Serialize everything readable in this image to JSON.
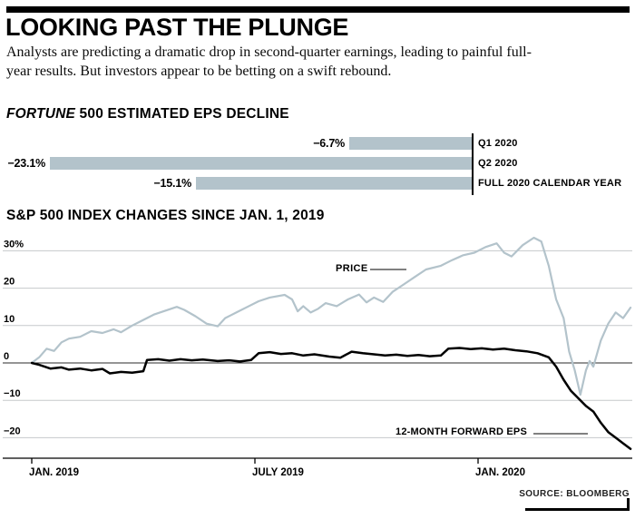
{
  "page": {
    "title": "LOOKING PAST THE PLUNGE",
    "subtitle": "Analysts are predicting a dramatic drop in second-quarter earnings, leading to painful full-year results. But investors appear to be betting on a swift rebound.",
    "source": "SOURCE: BLOOMBERG"
  },
  "colors": {
    "accent_bar": "#b3c3cb",
    "price_line": "#b3c3cb",
    "eps_line": "#000000",
    "grid": "#c6c9cb",
    "zero_line": "#2b2b2b"
  },
  "chart_data": [
    {
      "type": "bar",
      "orientation": "horizontal",
      "title": "FORTUNE 500 ESTIMATED EPS DECLINE",
      "title_parts": {
        "italic": "FORTUNE",
        "rest": " 500 ESTIMATED EPS DECLINE"
      },
      "categories": [
        "Q1 2020",
        "Q2 2020",
        "FULL 2020 CALENDAR YEAR"
      ],
      "values": [
        -6.7,
        -23.1,
        -15.1
      ],
      "value_labels": [
        "−6.7%",
        "−23.1%",
        "−15.1%"
      ],
      "xlim": [
        -23.1,
        0
      ]
    },
    {
      "type": "line",
      "title": "S&P 500 INDEX CHANGES SINCE JAN. 1, 2019",
      "ylim": [
        -24,
        36
      ],
      "ytick_values": [
        30,
        20,
        10,
        0,
        -10,
        -20
      ],
      "ytick_labels": [
        "30%",
        "20",
        "10",
        "0",
        "−10",
        "−20"
      ],
      "x_ticks": [
        "JAN. 2019",
        "JULY 2019",
        "JAN. 2020"
      ],
      "x_tick_months": [
        0,
        6,
        12
      ],
      "x_range_months": [
        0,
        16.1
      ],
      "grid": true,
      "legend_position": "inline-annotations",
      "series": [
        {
          "name": "PRICE",
          "color": "#b3c3cb",
          "points": [
            [
              0,
              0
            ],
            [
              0.2,
              1.5
            ],
            [
              0.4,
              3.8
            ],
            [
              0.6,
              3.2
            ],
            [
              0.8,
              5.5
            ],
            [
              1,
              6.5
            ],
            [
              1.3,
              7
            ],
            [
              1.6,
              8.5
            ],
            [
              1.9,
              8
            ],
            [
              2.2,
              9
            ],
            [
              2.4,
              8.2
            ],
            [
              2.7,
              10
            ],
            [
              3,
              11.5
            ],
            [
              3.3,
              13
            ],
            [
              3.6,
              14
            ],
            [
              3.9,
              15
            ],
            [
              4.1,
              14.2
            ],
            [
              4.4,
              12.5
            ],
            [
              4.7,
              10.5
            ],
            [
              5,
              9.8
            ],
            [
              5.2,
              12
            ],
            [
              5.5,
              13.5
            ],
            [
              5.8,
              15
            ],
            [
              6.1,
              16.5
            ],
            [
              6.4,
              17.5
            ],
            [
              6.8,
              18.2
            ],
            [
              7,
              17
            ],
            [
              7.15,
              13.8
            ],
            [
              7.3,
              15.2
            ],
            [
              7.5,
              13.5
            ],
            [
              7.7,
              14.5
            ],
            [
              7.9,
              16
            ],
            [
              8.2,
              15.2
            ],
            [
              8.5,
              17
            ],
            [
              8.8,
              18.3
            ],
            [
              9,
              16.2
            ],
            [
              9.2,
              17.5
            ],
            [
              9.45,
              16.3
            ],
            [
              9.7,
              19
            ],
            [
              10,
              21
            ],
            [
              10.3,
              23
            ],
            [
              10.6,
              25
            ],
            [
              11,
              26
            ],
            [
              11.3,
              27.5
            ],
            [
              11.6,
              28.8
            ],
            [
              11.9,
              29.5
            ],
            [
              12.2,
              31
            ],
            [
              12.5,
              32
            ],
            [
              12.7,
              29.5
            ],
            [
              12.9,
              28.5
            ],
            [
              13.2,
              31.5
            ],
            [
              13.5,
              33.5
            ],
            [
              13.7,
              32.5
            ],
            [
              13.9,
              26
            ],
            [
              14.1,
              17
            ],
            [
              14.3,
              12
            ],
            [
              14.45,
              3
            ],
            [
              14.6,
              -2
            ],
            [
              14.75,
              -8.5
            ],
            [
              14.9,
              -2
            ],
            [
              15,
              0.5
            ],
            [
              15.1,
              -1
            ],
            [
              15.3,
              6
            ],
            [
              15.5,
              10.5
            ],
            [
              15.7,
              13.5
            ],
            [
              15.9,
              12
            ],
            [
              16.1,
              14.8
            ]
          ]
        },
        {
          "name": "12-MONTH FORWARD EPS",
          "color": "#000000",
          "points": [
            [
              0,
              0
            ],
            [
              0.2,
              -0.5
            ],
            [
              0.5,
              -1.5
            ],
            [
              0.8,
              -1.2
            ],
            [
              1,
              -1.8
            ],
            [
              1.3,
              -1.5
            ],
            [
              1.6,
              -2
            ],
            [
              1.9,
              -1.6
            ],
            [
              2.1,
              -2.8
            ],
            [
              2.4,
              -2.4
            ],
            [
              2.7,
              -2.6
            ],
            [
              3,
              -2.2
            ],
            [
              3.1,
              0.8
            ],
            [
              3.4,
              1
            ],
            [
              3.7,
              0.6
            ],
            [
              4,
              1
            ],
            [
              4.3,
              0.7
            ],
            [
              4.6,
              0.9
            ],
            [
              5,
              0.5
            ],
            [
              5.3,
              0.7
            ],
            [
              5.6,
              0.4
            ],
            [
              5.9,
              0.8
            ],
            [
              6.1,
              2.6
            ],
            [
              6.4,
              2.9
            ],
            [
              6.7,
              2.4
            ],
            [
              7,
              2.6
            ],
            [
              7.3,
              2
            ],
            [
              7.6,
              2.3
            ],
            [
              8,
              1.7
            ],
            [
              8.3,
              1.4
            ],
            [
              8.6,
              3
            ],
            [
              8.9,
              2.6
            ],
            [
              9.2,
              2.3
            ],
            [
              9.5,
              2
            ],
            [
              9.8,
              2.2
            ],
            [
              10.1,
              1.9
            ],
            [
              10.4,
              2.1
            ],
            [
              10.7,
              1.8
            ],
            [
              11,
              2
            ],
            [
              11.2,
              3.8
            ],
            [
              11.5,
              4
            ],
            [
              11.8,
              3.7
            ],
            [
              12.1,
              3.9
            ],
            [
              12.4,
              3.6
            ],
            [
              12.7,
              3.8
            ],
            [
              13,
              3.4
            ],
            [
              13.3,
              3.1
            ],
            [
              13.6,
              2.6
            ],
            [
              13.9,
              1.5
            ],
            [
              14.1,
              -1
            ],
            [
              14.3,
              -4.5
            ],
            [
              14.5,
              -7.5
            ],
            [
              14.7,
              -9.5
            ],
            [
              14.9,
              -11.5
            ],
            [
              15.1,
              -13
            ],
            [
              15.3,
              -16
            ],
            [
              15.5,
              -18.5
            ],
            [
              15.7,
              -20
            ],
            [
              15.9,
              -21.5
            ],
            [
              16.1,
              -23
            ]
          ]
        }
      ]
    }
  ]
}
